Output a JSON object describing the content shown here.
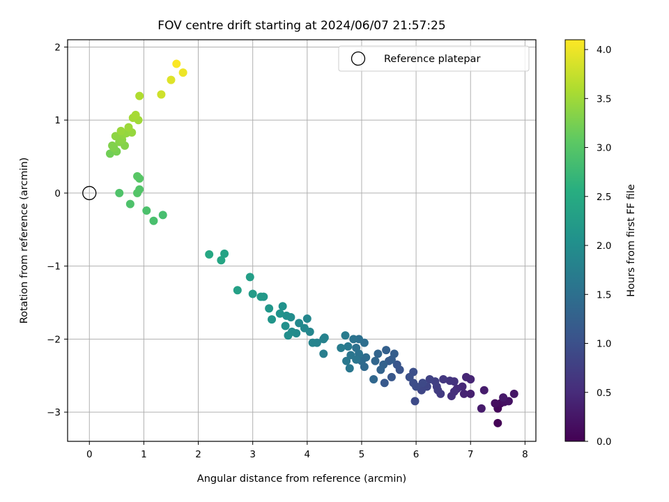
{
  "chart_data": {
    "type": "scatter",
    "title": "FOV centre drift starting at 2024/06/07 21:57:25",
    "xlabel": "Angular distance from reference (arcmin)",
    "ylabel": "Rotation from reference (arcmin)",
    "xlim": [
      -0.4,
      8.2
    ],
    "ylim": [
      -3.4,
      2.1
    ],
    "x_ticks": [
      0,
      1,
      2,
      3,
      4,
      5,
      6,
      7,
      8
    ],
    "y_ticks": [
      -3,
      -2,
      -1,
      0,
      1,
      2
    ],
    "grid": true,
    "legend": {
      "position": "top-right",
      "entries": [
        "Reference platepar"
      ]
    },
    "colorbar": {
      "label": "Hours from first FF file",
      "colormap": "viridis",
      "range": [
        0.0,
        4.1
      ],
      "ticks": [
        "0.0",
        "0.5",
        "1.0",
        "1.5",
        "2.0",
        "2.5",
        "3.0",
        "3.5",
        "4.0"
      ]
    },
    "reference_point": {
      "x": 0,
      "y": 0
    },
    "points": [
      [
        7.5,
        -3.15,
        0.02
      ],
      [
        7.5,
        -2.95,
        0.06
      ],
      [
        7.55,
        -2.88,
        0.1
      ],
      [
        7.45,
        -2.88,
        0.14
      ],
      [
        7.62,
        -2.86,
        0.18
      ],
      [
        7.7,
        -2.85,
        0.2
      ],
      [
        7.8,
        -2.75,
        0.24
      ],
      [
        7.6,
        -2.8,
        0.28
      ],
      [
        7.2,
        -2.95,
        0.3
      ],
      [
        7.25,
        -2.7,
        0.32
      ],
      [
        7.0,
        -2.75,
        0.36
      ],
      [
        6.88,
        -2.75,
        0.4
      ],
      [
        7.0,
        -2.55,
        0.42
      ],
      [
        6.92,
        -2.52,
        0.44
      ],
      [
        6.85,
        -2.65,
        0.46
      ],
      [
        6.75,
        -2.68,
        0.5
      ],
      [
        6.7,
        -2.72,
        0.54
      ],
      [
        6.65,
        -2.78,
        0.56
      ],
      [
        6.7,
        -2.58,
        0.6
      ],
      [
        6.62,
        -2.57,
        0.62
      ],
      [
        6.5,
        -2.55,
        0.66
      ],
      [
        6.45,
        -2.75,
        0.7
      ],
      [
        6.4,
        -2.7,
        0.72
      ],
      [
        6.38,
        -2.65,
        0.75
      ],
      [
        6.35,
        -2.58,
        0.78
      ],
      [
        6.25,
        -2.55,
        0.8
      ],
      [
        6.2,
        -2.65,
        0.84
      ],
      [
        6.1,
        -2.7,
        0.86
      ],
      [
        6.12,
        -2.6,
        0.9
      ],
      [
        5.98,
        -2.85,
        0.92
      ],
      [
        6.0,
        -2.65,
        0.94
      ],
      [
        5.95,
        -2.6,
        0.96
      ],
      [
        5.95,
        -2.45,
        0.98
      ],
      [
        5.88,
        -2.52,
        1.0
      ],
      [
        5.7,
        -2.42,
        1.05
      ],
      [
        5.65,
        -2.35,
        1.08
      ],
      [
        5.55,
        -2.52,
        1.1
      ],
      [
        5.42,
        -2.6,
        1.14
      ],
      [
        5.5,
        -2.3,
        1.18
      ],
      [
        5.55,
        -2.28,
        1.2
      ],
      [
        5.6,
        -2.2,
        1.22
      ],
      [
        5.45,
        -2.15,
        1.25
      ],
      [
        5.4,
        -2.35,
        1.28
      ],
      [
        5.35,
        -2.42,
        1.3
      ],
      [
        5.3,
        -2.2,
        1.32
      ],
      [
        5.25,
        -2.3,
        1.34
      ],
      [
        5.22,
        -2.55,
        1.36
      ],
      [
        5.05,
        -2.38,
        1.4
      ],
      [
        5.0,
        -2.3,
        1.42
      ],
      [
        5.08,
        -2.25,
        1.44
      ],
      [
        5.05,
        -2.05,
        1.48
      ],
      [
        4.95,
        -2.0,
        1.5
      ],
      [
        4.9,
        -2.12,
        1.52
      ],
      [
        4.95,
        -2.2,
        1.54
      ],
      [
        4.85,
        -2.0,
        1.56
      ],
      [
        4.9,
        -2.28,
        1.58
      ],
      [
        4.8,
        -2.22,
        1.6
      ],
      [
        4.78,
        -2.4,
        1.62
      ],
      [
        4.72,
        -2.3,
        1.64
      ],
      [
        4.75,
        -2.1,
        1.66
      ],
      [
        4.7,
        -1.95,
        1.68
      ],
      [
        4.62,
        -2.12,
        1.7
      ],
      [
        4.3,
        -2.2,
        1.74
      ],
      [
        4.3,
        -2.0,
        1.78
      ],
      [
        4.32,
        -1.98,
        1.8
      ],
      [
        4.18,
        -2.05,
        1.82
      ],
      [
        4.1,
        -2.05,
        1.84
      ],
      [
        4.05,
        -1.9,
        1.86
      ],
      [
        4.0,
        -1.72,
        1.88
      ],
      [
        3.95,
        -1.85,
        1.9
      ],
      [
        3.85,
        -1.78,
        1.92
      ],
      [
        3.8,
        -1.92,
        1.94
      ],
      [
        3.72,
        -1.9,
        1.96
      ],
      [
        3.7,
        -1.7,
        1.98
      ],
      [
        3.65,
        -1.95,
        2.0
      ],
      [
        3.62,
        -1.68,
        2.02
      ],
      [
        3.6,
        -1.82,
        2.04
      ],
      [
        3.55,
        -1.55,
        2.06
      ],
      [
        3.5,
        -1.65,
        2.08
      ],
      [
        3.35,
        -1.73,
        2.12
      ],
      [
        3.3,
        -1.58,
        2.15
      ],
      [
        3.2,
        -1.42,
        2.18
      ],
      [
        3.15,
        -1.42,
        2.2
      ],
      [
        3.0,
        -1.38,
        2.24
      ],
      [
        2.95,
        -1.15,
        2.28
      ],
      [
        2.72,
        -1.33,
        2.32
      ],
      [
        2.48,
        -0.83,
        2.36
      ],
      [
        2.42,
        -0.92,
        2.4
      ],
      [
        2.2,
        -0.84,
        2.44
      ],
      [
        1.35,
        -0.3,
        2.86
      ],
      [
        1.18,
        -0.38,
        2.88
      ],
      [
        1.05,
        -0.24,
        2.9
      ],
      [
        0.75,
        -0.15,
        2.92
      ],
      [
        0.55,
        0.0,
        2.94
      ],
      [
        0.92,
        0.05,
        2.96
      ],
      [
        0.88,
        0.0,
        2.98
      ],
      [
        0.92,
        0.2,
        3.0
      ],
      [
        0.88,
        0.23,
        3.02
      ],
      [
        0.38,
        0.54,
        3.2
      ],
      [
        0.5,
        0.57,
        3.24
      ],
      [
        0.45,
        0.62,
        3.28
      ],
      [
        0.42,
        0.65,
        3.3
      ],
      [
        0.65,
        0.65,
        3.32
      ],
      [
        0.55,
        0.7,
        3.34
      ],
      [
        0.6,
        0.73,
        3.36
      ],
      [
        0.48,
        0.78,
        3.38
      ],
      [
        0.62,
        0.8,
        3.4
      ],
      [
        0.68,
        0.82,
        3.42
      ],
      [
        0.78,
        0.83,
        3.44
      ],
      [
        0.58,
        0.85,
        3.46
      ],
      [
        0.72,
        0.9,
        3.48
      ],
      [
        0.9,
        1.0,
        3.5
      ],
      [
        0.8,
        1.03,
        3.52
      ],
      [
        0.85,
        1.07,
        3.54
      ],
      [
        0.92,
        1.33,
        3.6
      ],
      [
        1.32,
        1.35,
        3.8
      ],
      [
        1.5,
        1.55,
        3.9
      ],
      [
        1.72,
        1.65,
        4.0
      ],
      [
        1.6,
        1.77,
        4.08
      ]
    ]
  }
}
